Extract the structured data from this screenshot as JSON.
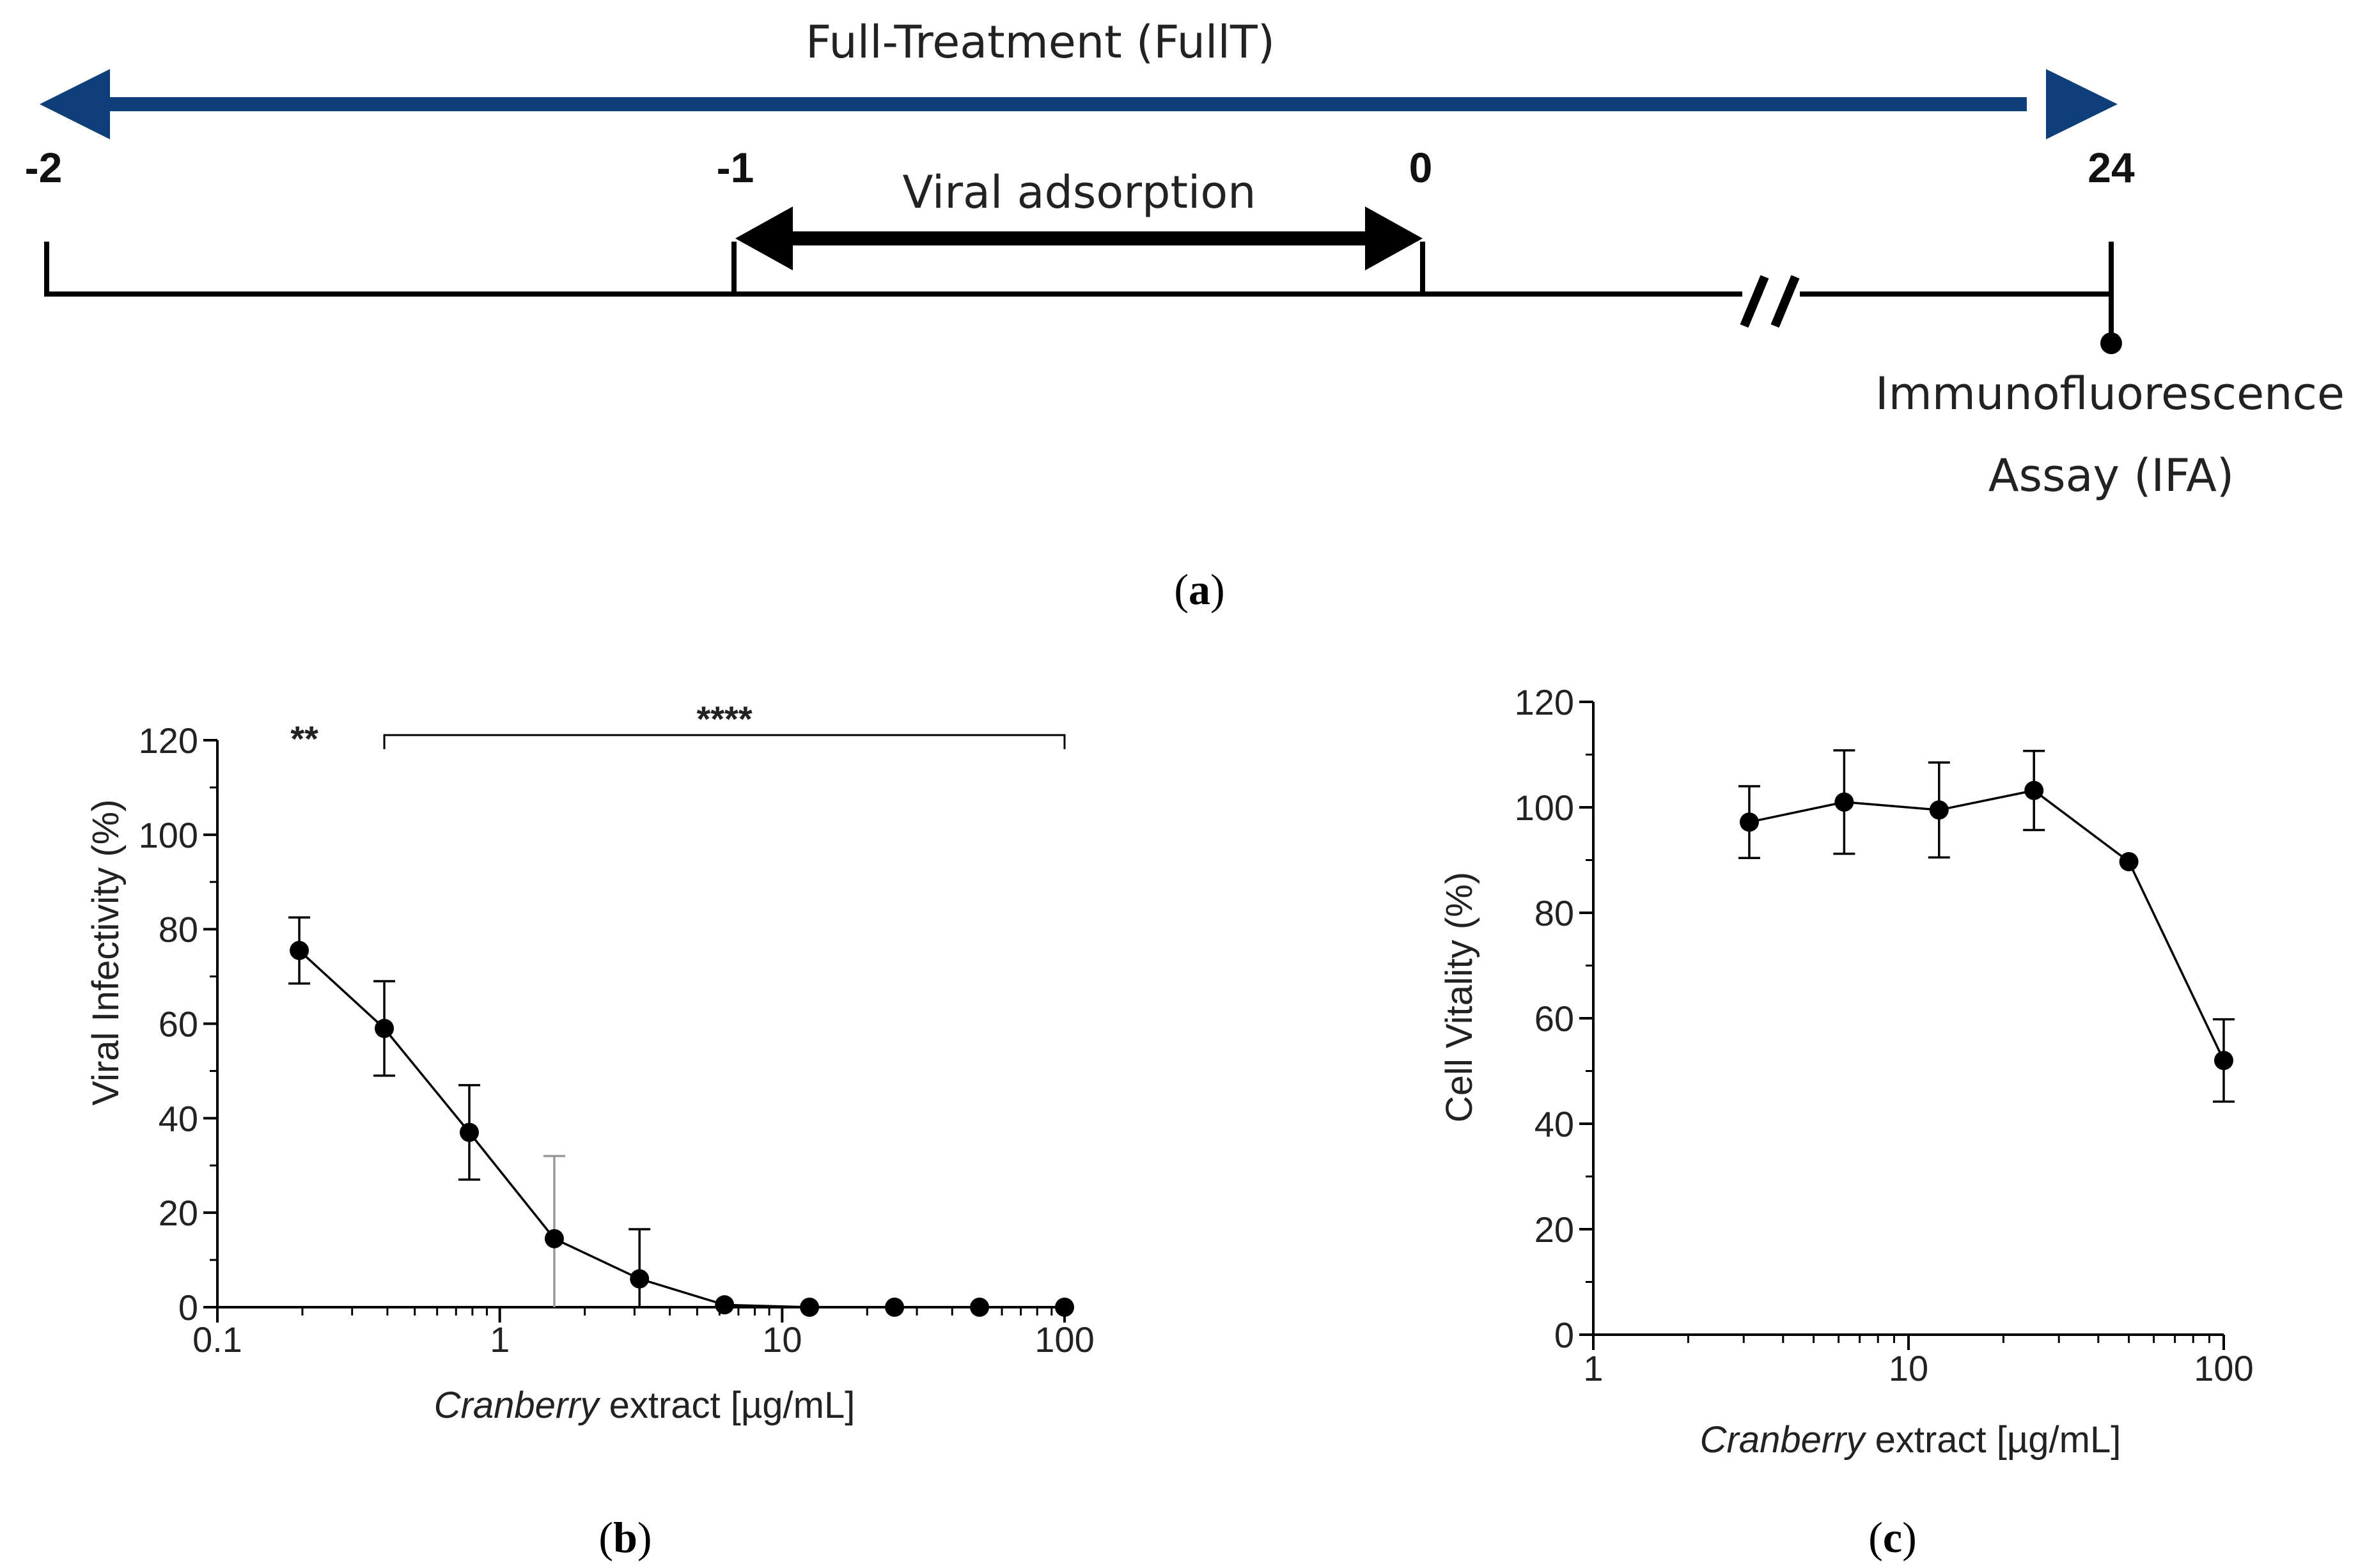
{
  "timeline": {
    "full_treatment_label": "Full-Treatment (FullT)",
    "viral_adsorption_label": "Viral adsorption",
    "ticks": [
      "-2",
      "-1",
      "0",
      "24"
    ],
    "endpoint_line1": "Immunofluorescence",
    "endpoint_line2": "Assay (IFA)",
    "arrow_color": "#0e3f7a"
  },
  "panel_labels": {
    "a": "a",
    "b": "b",
    "c": "c"
  },
  "chart_data": [
    {
      "id": "b",
      "type": "line",
      "xscale": "log",
      "xlim": [
        0.1,
        100
      ],
      "ylim": [
        0,
        120
      ],
      "xticks": [
        0.1,
        1,
        10,
        100
      ],
      "xtick_labels": [
        "0.1",
        "1",
        "10",
        "100"
      ],
      "yticks": [
        0,
        20,
        40,
        60,
        80,
        100,
        120
      ],
      "ytick_labels": [
        "0",
        "20",
        "40",
        "60",
        "80",
        "100",
        "120"
      ],
      "xlabel_italic": "Cranberry",
      "xlabel_rest": " extract [µg/mL]",
      "ylabel": "Viral Infectivity (%)",
      "x": [
        0.195,
        0.39,
        0.78,
        1.56,
        3.125,
        6.25,
        12.5,
        25,
        50,
        100
      ],
      "y": [
        75.5,
        59,
        37,
        14.5,
        6,
        0.5,
        0,
        0,
        0,
        0
      ],
      "err": [
        7,
        10,
        10,
        17.5,
        10.5,
        0,
        0,
        0,
        0,
        0
      ],
      "significance": [
        {
          "label": "**",
          "x": 0.195
        },
        {
          "label": "****",
          "x_start": 0.39,
          "x_end": 100
        }
      ]
    },
    {
      "id": "c",
      "type": "line",
      "xscale": "log",
      "xlim": [
        1,
        100
      ],
      "ylim": [
        0,
        120
      ],
      "xticks": [
        1,
        10,
        100
      ],
      "xtick_labels": [
        "1",
        "10",
        "100"
      ],
      "yticks": [
        0,
        20,
        40,
        60,
        80,
        100,
        120
      ],
      "ytick_labels": [
        "0",
        "20",
        "40",
        "60",
        "80",
        "100",
        "120"
      ],
      "xlabel_italic": "Cranberry",
      "xlabel_rest": " extract [µg/mL]",
      "ylabel": "Cell Vitality (%)",
      "x": [
        3.125,
        6.25,
        12.5,
        25,
        50,
        100
      ],
      "y": [
        97.2,
        101,
        99.5,
        103.2,
        89.7,
        52
      ],
      "err": [
        6.8,
        9.8,
        9,
        7.5,
        0,
        7.8
      ]
    }
  ]
}
